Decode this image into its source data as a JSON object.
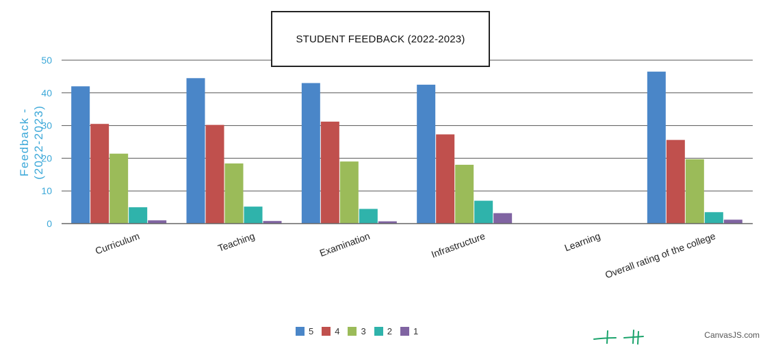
{
  "chart_data": {
    "type": "bar",
    "title": "STUDENT FEEDBACK (2022-2023)",
    "ylabel": "Feedback -\n(2022-2023)",
    "xlabel": "",
    "ylim": [
      0,
      50
    ],
    "yticks": [
      0,
      10,
      20,
      30,
      40,
      50
    ],
    "categories": [
      "Curriculum",
      "Teaching",
      "Examination",
      "Infrastructure",
      "Learning",
      "Overall rating of the college"
    ],
    "series": [
      {
        "name": "5",
        "color": "#4a86c8",
        "values": [
          42,
          44.5,
          43,
          42.5,
          0,
          46.5
        ]
      },
      {
        "name": "4",
        "color": "#c0504d",
        "values": [
          30.5,
          30.2,
          31.2,
          27.3,
          0,
          25.6
        ]
      },
      {
        "name": "3",
        "color": "#9bbb59",
        "values": [
          21.4,
          18.4,
          19,
          18,
          0,
          19.7
        ]
      },
      {
        "name": "2",
        "color": "#2fb3ab",
        "values": [
          5,
          5.2,
          4.5,
          7,
          0,
          3.5
        ]
      },
      {
        "name": "1",
        "color": "#8064a2",
        "values": [
          1,
          0.8,
          0.7,
          3.2,
          0,
          1.2
        ]
      }
    ],
    "grid": true,
    "legend_position": "bottom-center"
  },
  "credit": "CanvasJS.com"
}
